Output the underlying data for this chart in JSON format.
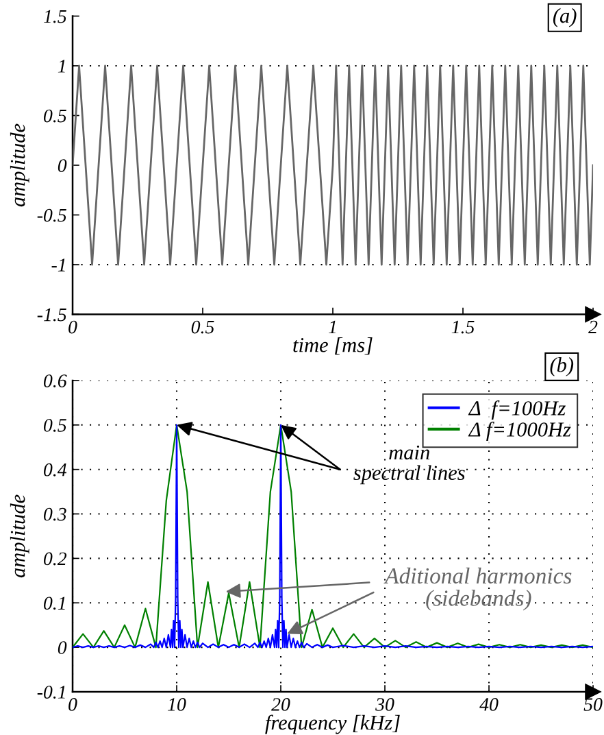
{
  "chart_data": [
    {
      "type": "line",
      "xlabel": "time [ms]",
      "ylabel": "amplitude",
      "annotations": [
        "(a)"
      ],
      "xlim": [
        0,
        2
      ],
      "ylim": [
        -1.5,
        1.5
      ],
      "xticks": [
        0,
        0.5,
        1,
        1.5,
        2
      ],
      "yticks": [
        -1.5,
        -1,
        -0.5,
        0,
        0.5,
        1,
        1.5
      ],
      "ref_lines": [
        {
          "axis": "y",
          "value": 1,
          "color": "#000000",
          "line_style": "dotted"
        },
        {
          "axis": "y",
          "value": -1,
          "color": "#000000",
          "line_style": "dotted"
        }
      ],
      "series": [
        {
          "color": "#666666",
          "x": [
            0,
            0.025,
            0.05,
            0.075,
            0.1,
            0.125,
            0.15,
            0.175,
            0.2,
            0.225,
            0.25,
            0.275,
            0.3,
            0.325,
            0.35,
            0.375,
            0.4,
            0.425,
            0.45,
            0.475,
            0.5,
            0.525,
            0.55,
            0.575,
            0.6,
            0.625,
            0.65,
            0.675,
            0.7,
            0.725,
            0.75,
            0.775,
            0.8,
            0.825,
            0.85,
            0.875,
            0.9,
            0.925,
            0.95,
            0.975,
            1,
            1.0125,
            1.025,
            1.0375,
            1.05,
            1.0625,
            1.075,
            1.0875,
            1.1,
            1.1125,
            1.125,
            1.1375,
            1.15,
            1.1625,
            1.175,
            1.1875,
            1.2,
            1.2125,
            1.225,
            1.2375,
            1.25,
            1.2625,
            1.275,
            1.2875,
            1.3,
            1.3125,
            1.325,
            1.3375,
            1.35,
            1.3625,
            1.375,
            1.3875,
            1.4,
            1.4125,
            1.425,
            1.4375,
            1.45,
            1.4625,
            1.475,
            1.4875,
            1.5,
            1.5125,
            1.525,
            1.5375,
            1.55,
            1.5625,
            1.575,
            1.5875,
            1.6,
            1.6125,
            1.625,
            1.6375,
            1.65,
            1.6625,
            1.675,
            1.6875,
            1.7,
            1.7125,
            1.725,
            1.7375,
            1.75,
            1.7625,
            1.775,
            1.7875,
            1.8,
            1.8125,
            1.825,
            1.8375,
            1.85,
            1.8625,
            1.875,
            1.8875,
            1.9,
            1.9125,
            1.925,
            1.9375,
            1.95,
            1.9625,
            1.975,
            1.9875,
            2
          ],
          "values": [
            0,
            1,
            0,
            -1,
            0,
            1,
            0,
            -1,
            0,
            1,
            0,
            -1,
            0,
            1,
            0,
            -1,
            0,
            1,
            0,
            -1,
            0,
            1,
            0,
            -1,
            0,
            1,
            0,
            -1,
            0,
            1,
            0,
            -1,
            0,
            1,
            0,
            -1,
            0,
            1,
            0,
            -1,
            0,
            1,
            0,
            -1,
            0,
            1,
            0,
            -1,
            0,
            1,
            0,
            -1,
            0,
            1,
            0,
            -1,
            0,
            1,
            0,
            -1,
            0,
            1,
            0,
            -1,
            0,
            1,
            0,
            -1,
            0,
            1,
            0,
            -1,
            0,
            1,
            0,
            -1,
            0,
            1,
            0,
            -1,
            0,
            1,
            0,
            -1,
            0,
            1,
            0,
            -1,
            0,
            1,
            0,
            -1,
            0,
            1,
            0,
            -1,
            0,
            1,
            0,
            -1,
            0,
            1,
            0,
            -1,
            0,
            1,
            0,
            -1,
            0,
            1,
            0,
            -1,
            0,
            1,
            0,
            -1,
            0,
            1,
            0,
            -1,
            0
          ]
        }
      ]
    },
    {
      "type": "line",
      "xlabel": "frequency [kHz]",
      "ylabel": "amplitude",
      "annotations": [
        "(b)",
        {
          "text": "main\nspectral lines",
          "x": 10,
          "y": 0.5
        },
        {
          "text": "Aditional harmonics\n(sidebands)",
          "x": 14.7,
          "y": 0.125
        }
      ],
      "xlim": [
        0,
        50
      ],
      "ylim": [
        -0.1,
        0.6
      ],
      "xticks": [
        0,
        10,
        20,
        30,
        40,
        50
      ],
      "yticks": [
        -0.1,
        0,
        0.1,
        0.2,
        0.3,
        0.4,
        0.5,
        0.6
      ],
      "grid": true,
      "legend": "top right",
      "series": [
        {
          "name": "Δ  f=100Hz",
          "color": "#0000ff",
          "x": [
            0,
            0.5,
            1,
            1.5,
            2,
            2.5,
            3,
            3.5,
            4,
            4.5,
            5,
            5.5,
            6,
            6.5,
            7,
            7.5,
            7.8,
            8.0,
            8.2,
            8.4,
            8.6,
            8.8,
            9.0,
            9.2,
            9.4,
            9.5,
            9.6,
            9.7,
            9.8,
            9.9,
            10,
            10.1,
            10.2,
            10.3,
            10.4,
            10.5,
            10.6,
            10.8,
            11.0,
            11.2,
            11.4,
            11.6,
            11.8,
            12.0,
            12.2,
            12.5,
            13,
            13.5,
            14,
            14.5,
            15,
            15.5,
            16,
            16.5,
            17,
            17.5,
            17.8,
            18.0,
            18.2,
            18.4,
            18.6,
            18.8,
            19.0,
            19.2,
            19.4,
            19.5,
            19.6,
            19.7,
            19.8,
            19.9,
            20,
            20.1,
            20.2,
            20.3,
            20.4,
            20.5,
            20.6,
            20.8,
            21.0,
            21.2,
            21.4,
            21.6,
            21.8,
            22.0,
            22.2,
            22.5,
            23,
            23.5,
            24,
            24.5,
            25,
            26,
            27,
            28,
            29,
            30,
            31,
            32,
            33,
            34,
            35,
            36,
            37,
            38,
            39,
            40,
            41,
            42,
            43,
            44,
            45,
            46,
            47,
            48,
            49,
            50
          ],
          "values": [
            0,
            0.003,
            0,
            0.003,
            0,
            0.003,
            0,
            0.003,
            0,
            0.003,
            0,
            0.004,
            0,
            0.005,
            0,
            0.007,
            0,
            0.011,
            0,
            0.014,
            0,
            0.02,
            0,
            0.028,
            0,
            0.04,
            0,
            0.06,
            0,
            0.11,
            0.5,
            0.11,
            0,
            0.06,
            0,
            0.04,
            0,
            0.028,
            0,
            0.02,
            0,
            0.014,
            0,
            0.011,
            0,
            0.009,
            0,
            0.007,
            0,
            0.006,
            0,
            0.006,
            0,
            0.007,
            0,
            0.009,
            0,
            0.011,
            0,
            0.014,
            0,
            0.02,
            0,
            0.028,
            0,
            0.04,
            0,
            0.06,
            0,
            0.11,
            0.5,
            0.11,
            0,
            0.06,
            0,
            0.04,
            0,
            0.028,
            0,
            0.02,
            0,
            0.014,
            0,
            0.011,
            0,
            0.008,
            0,
            0.006,
            0,
            0.005,
            0,
            0.004,
            0,
            0.003,
            0,
            0.003,
            0,
            0.003,
            0,
            0.002,
            0,
            0.002,
            0,
            0.002,
            0,
            0.002,
            0,
            0.002,
            0,
            0.002,
            0,
            0.002,
            0,
            0.002,
            0,
            0.002
          ]
        },
        {
          "name": "Δ f=1000Hz",
          "color": "#008000",
          "x": [
            0,
            1,
            2,
            3,
            4,
            5,
            6,
            7,
            8,
            9,
            10,
            11,
            12,
            13,
            14,
            15,
            16,
            17,
            18,
            19,
            20,
            21,
            22,
            23,
            24,
            25,
            26,
            27,
            28,
            29,
            30,
            31,
            32,
            33,
            34,
            35,
            36,
            37,
            38,
            39,
            40,
            41,
            42,
            43,
            44,
            45,
            46,
            47,
            48,
            49,
            50
          ],
          "values": [
            0,
            0.03,
            0,
            0.037,
            0,
            0.05,
            0,
            0.087,
            0,
            0.33,
            0.5,
            0.35,
            0,
            0.147,
            0,
            0.122,
            0,
            0.147,
            0,
            0.35,
            0.5,
            0.35,
            0,
            0.085,
            0,
            0.043,
            0,
            0.03,
            0,
            0.02,
            0,
            0.015,
            0,
            0.012,
            0,
            0.01,
            0,
            0.009,
            0,
            0.007,
            0,
            0.006,
            0,
            0.006,
            0,
            0.005,
            0,
            0.005,
            0,
            0.005,
            0
          ]
        }
      ]
    }
  ]
}
